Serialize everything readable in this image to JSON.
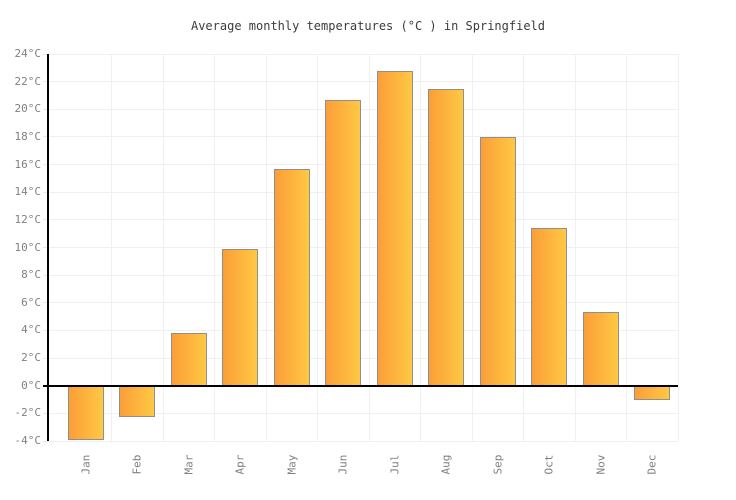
{
  "chart_data": {
    "type": "bar",
    "title": "Average monthly temperatures (°C ) in Springfield",
    "categories": [
      "Jan",
      "Feb",
      "Mar",
      "Apr",
      "May",
      "Jun",
      "Jul",
      "Aug",
      "Sep",
      "Oct",
      "Nov",
      "Dec"
    ],
    "values": [
      -3.9,
      -2.3,
      3.8,
      9.9,
      15.7,
      20.7,
      22.8,
      21.5,
      18.0,
      11.4,
      5.3,
      -1.0
    ],
    "unit": "°C",
    "xlabel": "",
    "ylabel": "",
    "ylim": [
      -4,
      24
    ],
    "ytick_step": 2,
    "grid": true,
    "legend": false,
    "colors": {
      "bar_gradient_start": "#fb9e39",
      "bar_gradient_end": "#ffc843",
      "bar_border": "#8f8f8f",
      "gridline": "#f0f0f0",
      "axis_line": "#000000",
      "axis_label": "#808080",
      "title_text": "#3c3c3c",
      "background": "#ffffff"
    }
  }
}
